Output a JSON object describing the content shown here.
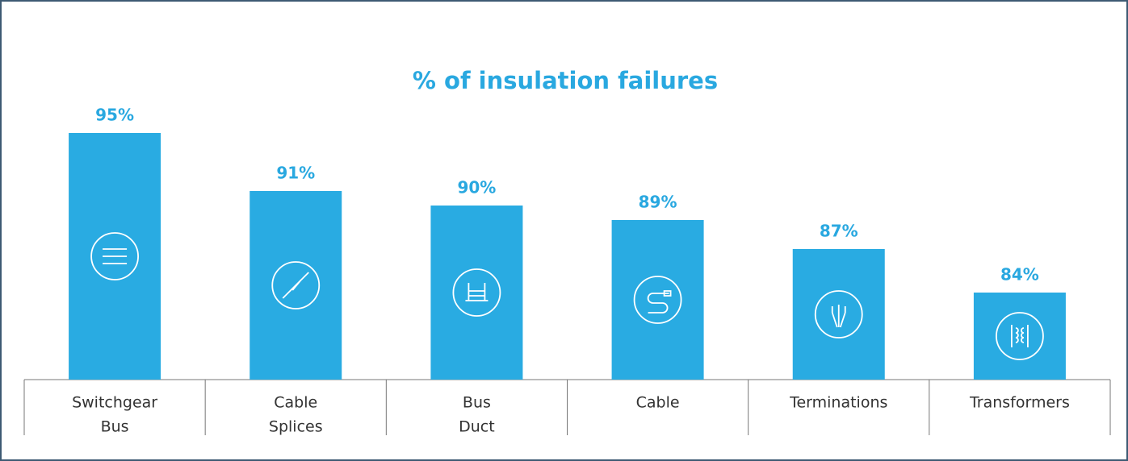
{
  "chart_data": {
    "type": "bar",
    "title": "% of insulation failures",
    "categories": [
      [
        "Switchgear",
        "Bus"
      ],
      [
        "Cable",
        "Splices"
      ],
      [
        "Bus",
        "Duct"
      ],
      [
        "Cable"
      ],
      [
        "Terminations"
      ],
      [
        "Transformers"
      ]
    ],
    "values": [
      95,
      91,
      90,
      89,
      87,
      84
    ],
    "value_labels": [
      "95%",
      "91%",
      "90%",
      "89%",
      "87%",
      "84%"
    ],
    "color": "#29abe2",
    "ylim": [
      78,
      100
    ]
  }
}
